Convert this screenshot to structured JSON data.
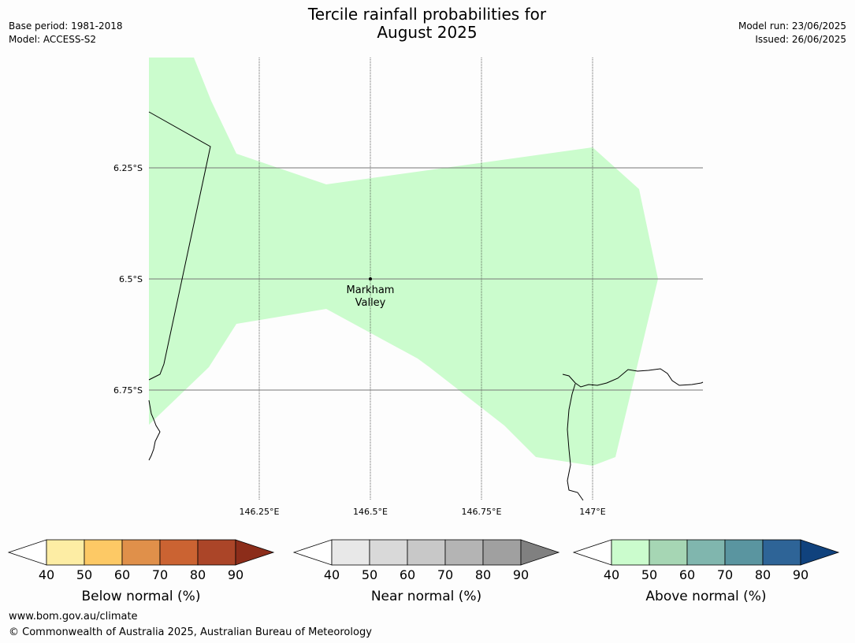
{
  "title_line1": "Tercile rainfall probabilities for",
  "title_line2": "August 2025",
  "base_period": "Base period: 1981-2018",
  "model": "Model: ACCESS-S2",
  "model_run": "Model run: 23/06/2025",
  "issued": "Issued: 26/06/2025",
  "place": {
    "line1": "Markham",
    "line2": "Valley"
  },
  "lat_labels": [
    "6.25°S",
    "6.5°S",
    "6.75°S"
  ],
  "lon_labels": [
    "146.25°E",
    "146.5°E",
    "146.75°E",
    "147°E"
  ],
  "colorbars": [
    {
      "title": "Below normal (%)",
      "ticks": [
        "40",
        "50",
        "60",
        "70",
        "80",
        "90"
      ],
      "colors": [
        "#ffffff",
        "#fdeda4",
        "#fdc965",
        "#e0904a",
        "#cb6332",
        "#ab4528",
        "#8c2d1a"
      ]
    },
    {
      "title": "Near normal (%)",
      "ticks": [
        "40",
        "50",
        "60",
        "70",
        "80",
        "90"
      ],
      "colors": [
        "#ffffff",
        "#e8e8e8",
        "#d9d9d9",
        "#c8c8c8",
        "#b4b4b4",
        "#a0a0a0",
        "#808080"
      ]
    },
    {
      "title": "Above normal (%)",
      "ticks": [
        "40",
        "50",
        "60",
        "70",
        "80",
        "90"
      ],
      "colors": [
        "#ffffff",
        "#cbfccd",
        "#a6d6b4",
        "#80b6ae",
        "#5a95a0",
        "#2e6497",
        "#10427d"
      ]
    }
  ],
  "region_fill": "#cbfccd",
  "footer_url": "www.bom.gov.au/climate",
  "footer_copy": "© Commonwealth of Australia 2025, Australian Bureau of Meteorology"
}
